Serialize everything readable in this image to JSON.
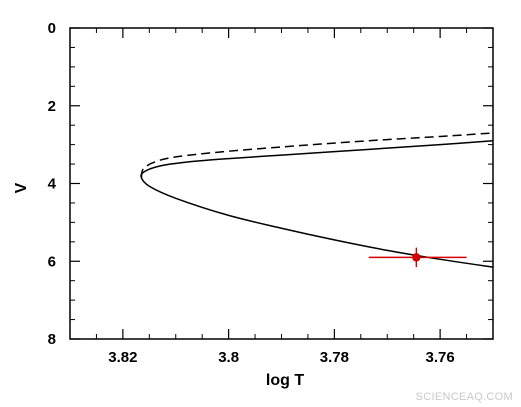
{
  "chart_data": {
    "type": "line",
    "xlabel": "log T",
    "ylabel": "V",
    "xlim": [
      3.83,
      3.75
    ],
    "ylim": [
      8,
      0
    ],
    "x_ticks": [
      3.82,
      3.8,
      3.78,
      3.76
    ],
    "x_tick_labels": [
      "3.82",
      "3.8",
      "3.78",
      "3.76"
    ],
    "y_ticks": [
      0,
      2,
      4,
      6,
      8
    ],
    "y_tick_labels": [
      "0",
      "2",
      "4",
      "6",
      "8"
    ],
    "grid": false,
    "series": [
      {
        "style": "solid",
        "color": "#000000",
        "x": [
          3.75,
          3.76,
          3.77,
          3.78,
          3.79,
          3.8,
          3.81,
          3.815,
          3.8165,
          3.816,
          3.813,
          3.808,
          3.8,
          3.79,
          3.78,
          3.77,
          3.76,
          3.75
        ],
        "y": [
          6.15,
          5.95,
          5.72,
          5.45,
          5.15,
          4.82,
          4.38,
          4.07,
          3.85,
          3.7,
          3.55,
          3.45,
          3.36,
          3.27,
          3.18,
          3.09,
          3.0,
          2.9
        ]
      },
      {
        "style": "dashed",
        "color": "#000000",
        "x": [
          3.8165,
          3.816,
          3.813,
          3.808,
          3.8,
          3.79,
          3.78,
          3.77,
          3.76,
          3.75
        ],
        "y": [
          3.85,
          3.6,
          3.4,
          3.28,
          3.17,
          3.06,
          2.96,
          2.87,
          2.79,
          2.7
        ]
      }
    ],
    "points": [
      {
        "x": 3.7645,
        "y": 5.9,
        "x_err": [
          3.7735,
          3.755
        ],
        "y_err": [
          5.65,
          6.15
        ],
        "color": "#d40000"
      }
    ]
  },
  "watermark": "SCIENCEAQ.COM"
}
